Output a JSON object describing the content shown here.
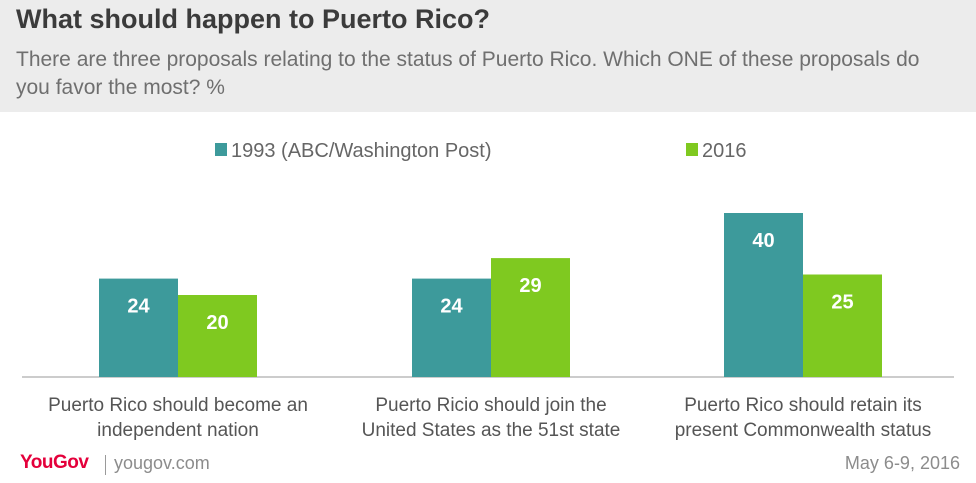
{
  "title": "What should happen to Puerto Rico?",
  "subtitle": "There are three proposals relating to the status of Puerto Rico. Which ONE of these proposals do you favor the most? %",
  "footer": {
    "logo": "YouGov",
    "site": "yougov.com",
    "date": "May 6-9, 2016"
  },
  "colors": {
    "series_1993": "#3d9a9b",
    "series_2016": "#7fc920",
    "label_text": "#ffffff",
    "axis_label": "#555555",
    "legend_text": "#666666",
    "baseline": "#9a9a9a"
  },
  "chart_data": {
    "type": "bar",
    "title": "",
    "xlabel": "",
    "ylabel": "",
    "ylim": [
      0,
      45
    ],
    "legend": "top",
    "grid": false,
    "categories": [
      "Puerto Rico should become an independent nation",
      "Puerto Ricio should join the United States as the 51st state",
      "Puerto Rico should retain its present Commonwealth status"
    ],
    "category_lines": [
      [
        "Puerto Rico should become an",
        "independent nation"
      ],
      [
        "Puerto Ricio should join the",
        "United States as the 51st state"
      ],
      [
        "Puerto Rico should retain its",
        "present Commonwealth status"
      ]
    ],
    "series": [
      {
        "name": "1993 (ABC/Washington Post)",
        "values": [
          24,
          24,
          40
        ]
      },
      {
        "name": "2016",
        "values": [
          20,
          29,
          25
        ]
      }
    ]
  }
}
